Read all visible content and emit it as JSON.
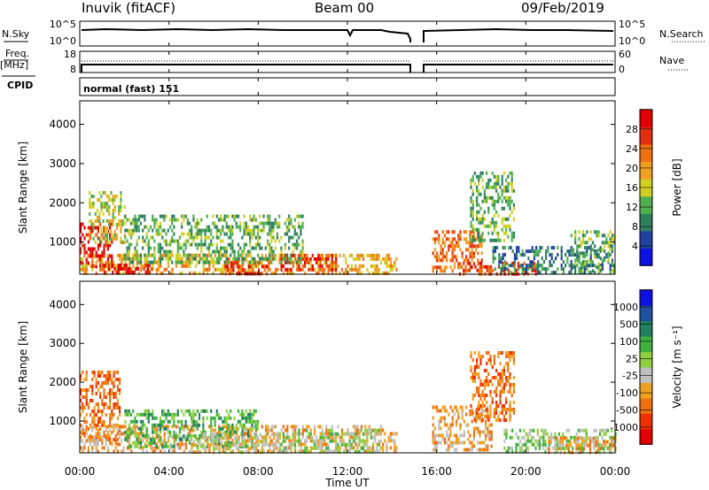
{
  "header": {
    "station": "Inuvik (fitACF)",
    "beam": "Beam 00",
    "date": "09/Feb/2019"
  },
  "noise_panel": {
    "left_label": "N.Sky",
    "left_ticks": [
      "10^5",
      "10^0"
    ],
    "right_label": "N.Search",
    "right_ticks": [
      "10^5",
      "10^0"
    ]
  },
  "freq_panel": {
    "left_label": "Freq.",
    "left_unit": "[MHz]",
    "left_ticks": [
      "18",
      "8"
    ],
    "right_label": "Nave",
    "right_ticks": [
      "60",
      "0"
    ]
  },
  "cpid": {
    "label": "CPID",
    "value": "normal (fast) 151"
  },
  "x_axis": {
    "label": "Time UT",
    "ticks": [
      "00:00",
      "04:00",
      "08:00",
      "12:00",
      "16:00",
      "20:00",
      "00:00"
    ]
  },
  "colors": {
    "power": [
      "#1010e0",
      "#2040a0",
      "#308060",
      "#50b050",
      "#d0d020",
      "#f0a020",
      "#f07010",
      "#e03010",
      "#e00000"
    ],
    "velocity": [
      "#e00000",
      "#f03000",
      "#f07010",
      "#f0a020",
      "#c0c0c0",
      "#90d040",
      "#40b040",
      "#208060",
      "#2050a0",
      "#1010e0"
    ]
  },
  "chart_data": [
    {
      "type": "heatmap",
      "name": "power",
      "ylabel": "Slant Range [km]",
      "yticks": [
        "1000",
        "2000",
        "3000",
        "4000"
      ],
      "ylim": [
        180,
        4600
      ],
      "xlim": [
        0,
        24
      ],
      "colorbar": {
        "label": "Power [dB]",
        "ticks": [
          "4",
          "8",
          "12",
          "16",
          "20",
          "24",
          "28"
        ]
      },
      "blobs": [
        {
          "t0": 0.0,
          "t1": 1.4,
          "r0": 400,
          "r1": 1500,
          "level": 8
        },
        {
          "t0": 0.4,
          "t1": 2.0,
          "r0": 1000,
          "r1": 2300,
          "level": 4
        },
        {
          "t0": 0.0,
          "t1": 14.2,
          "r0": 200,
          "r1": 700,
          "level": 5
        },
        {
          "t0": 1.0,
          "t1": 3.2,
          "r0": 200,
          "r1": 450,
          "level": 8
        },
        {
          "t0": 6.5,
          "t1": 8.5,
          "r0": 200,
          "r1": 600,
          "level": 7
        },
        {
          "t0": 9.0,
          "t1": 11.5,
          "r0": 250,
          "r1": 700,
          "level": 7
        },
        {
          "t0": 2.0,
          "t1": 10.0,
          "r0": 500,
          "r1": 1700,
          "level": 3
        },
        {
          "t0": 15.8,
          "t1": 18.0,
          "r0": 300,
          "r1": 1300,
          "level": 6
        },
        {
          "t0": 17.0,
          "t1": 20.5,
          "r0": 200,
          "r1": 500,
          "level": 7
        },
        {
          "t0": 17.5,
          "t1": 19.5,
          "r0": 1000,
          "r1": 2800,
          "level": 3
        },
        {
          "t0": 18.5,
          "t1": 24.0,
          "r0": 200,
          "r1": 900,
          "level": 2
        },
        {
          "t0": 22.0,
          "t1": 24.0,
          "r0": 300,
          "r1": 1300,
          "level": 3
        }
      ]
    },
    {
      "type": "heatmap",
      "name": "velocity",
      "ylabel": "Slant Range [km]",
      "yticks": [
        "1000",
        "2000",
        "3000",
        "4000"
      ],
      "ylim": [
        180,
        4600
      ],
      "xlim": [
        0,
        24
      ],
      "colorbar": {
        "label": "Velocity [m s⁻¹]",
        "ticks": [
          "-1000",
          "-500",
          "-100",
          "-25",
          "25",
          "100",
          "500",
          "1000"
        ]
      },
      "blobs": [
        {
          "t0": 0.0,
          "t1": 1.8,
          "r0": 400,
          "r1": 2300,
          "level": 2
        },
        {
          "t0": 0.0,
          "t1": 14.2,
          "r0": 200,
          "r1": 900,
          "level": 3
        },
        {
          "t0": 2.0,
          "t1": 8.0,
          "r0": 300,
          "r1": 1300,
          "level": 6
        },
        {
          "t0": 5.0,
          "t1": 9.0,
          "r0": 200,
          "r1": 700,
          "level": 4
        },
        {
          "t0": 9.0,
          "t1": 13.5,
          "r0": 200,
          "r1": 800,
          "level": 5
        },
        {
          "t0": 15.8,
          "t1": 18.5,
          "r0": 300,
          "r1": 1400,
          "level": 3
        },
        {
          "t0": 17.5,
          "t1": 19.5,
          "r0": 1000,
          "r1": 2800,
          "level": 2
        },
        {
          "t0": 19.0,
          "t1": 24.0,
          "r0": 200,
          "r1": 800,
          "level": 5
        },
        {
          "t0": 21.0,
          "t1": 24.0,
          "r0": 200,
          "r1": 600,
          "level": 3
        }
      ]
    }
  ]
}
